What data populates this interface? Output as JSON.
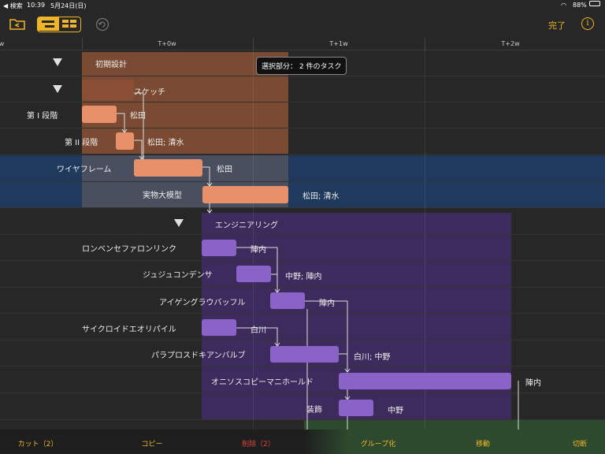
{
  "status": {
    "carrier": "◀ 検索",
    "time": "10:39",
    "date": "5月24日(日)",
    "battery": "88%"
  },
  "toolbar": {
    "done_label": "完了",
    "info_label": "i"
  },
  "timeline": [
    "w",
    "T+0w",
    "T+1w",
    "T+2w"
  ],
  "tooltip": "選択部分： 2 件のタスク",
  "tasks": [
    {
      "label": "初期設計",
      "resource": ""
    },
    {
      "label": "スケッチ",
      "resource": ""
    },
    {
      "label": "第 I 段階",
      "resource": "松田"
    },
    {
      "label": "第 II 段階",
      "resource": "松田; 清水"
    },
    {
      "label": "ワイヤフレーム",
      "resource": "松田"
    },
    {
      "label": "実物大模型",
      "resource": "松田; 清水"
    },
    {
      "label": "エンジニアリング",
      "resource": ""
    },
    {
      "label": "ロンベンセファロンリンク",
      "resource": "陣内"
    },
    {
      "label": "ジュジュコンデンサ",
      "resource": "中野; 陣内"
    },
    {
      "label": "アイゲングラウバッフル",
      "resource": "陣内"
    },
    {
      "label": "サイクロイドエオリパイル",
      "resource": "白川"
    },
    {
      "label": "パラプロスドキアンバルブ",
      "resource": "白川; 中野"
    },
    {
      "label": "オニソスコピーマニホールド",
      "resource": "陣内"
    },
    {
      "label": "装飾",
      "resource": "中野"
    }
  ],
  "bottom": {
    "cut": "カット（2）",
    "copy": "コピー",
    "delete": "削除（2）",
    "group": "グループ化",
    "move": "移動",
    "split": "切断"
  },
  "colors": {
    "accent": "#f0b429",
    "design_group": "#7a4a32",
    "design_bar": "#e8906a",
    "eng_group": "#3d2b5e",
    "eng_bar": "#8a62c8",
    "selected_row": "#1f3a5c"
  }
}
